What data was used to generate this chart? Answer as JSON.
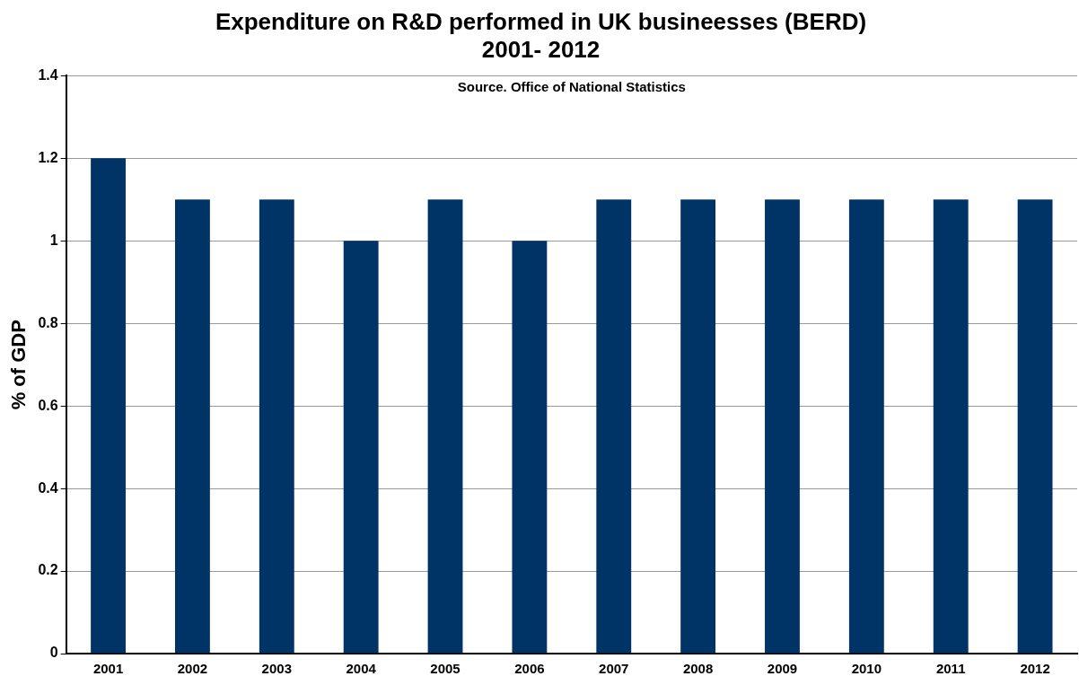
{
  "chart_data": {
    "type": "bar",
    "title": "Expenditure on R&D performed in UK busineesses (BERD)\n2001- 2012",
    "ylabel": "% of GDP",
    "annotations": [
      "Source. Office of National Statistics"
    ],
    "categories": [
      "2001",
      "2002",
      "2003",
      "2004",
      "2005",
      "2006",
      "2007",
      "2008",
      "2009",
      "2010",
      "2011",
      "2012"
    ],
    "values": [
      1.2,
      1.1,
      1.1,
      1.0,
      1.1,
      1.0,
      1.1,
      1.1,
      1.1,
      1.1,
      1.1,
      1.1
    ],
    "color": "#003366",
    "ylim": [
      0,
      1.4
    ],
    "yticks": [
      0,
      0.2,
      0.4,
      0.6,
      0.8,
      1,
      1.2,
      1.4
    ],
    "grid": "y",
    "legend": false
  }
}
